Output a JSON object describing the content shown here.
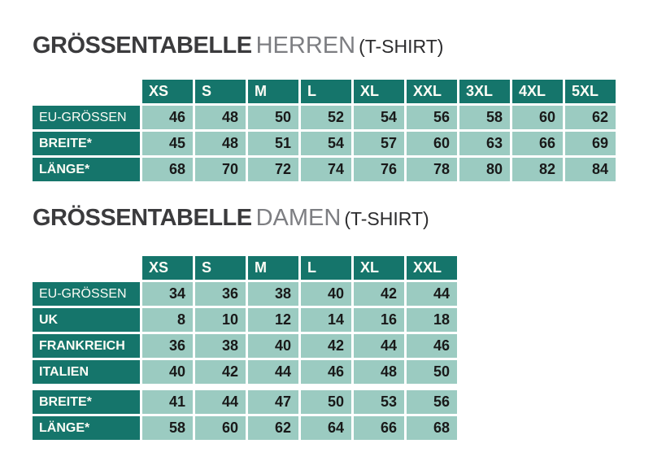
{
  "colors": {
    "header_background": "#15756b",
    "cell_background": "#9bcbc1",
    "header_text": "#fdfdf6",
    "cell_text": "#191919",
    "title_primary": "#3b3b3d",
    "title_secondary": "#7d7e82",
    "title_suffix": "#2c2c2e"
  },
  "tables": [
    {
      "name": "herren-tshirt",
      "title": {
        "main": "GRÖSSENTABELLE",
        "audience": "HERREN",
        "product": "(T-SHIRT)"
      },
      "columns": [
        "XS",
        "S",
        "M",
        "L",
        "XL",
        "XXL",
        "3XL",
        "4XL",
        "5XL"
      ],
      "rows": [
        {
          "label": "EU-GRÖSSEN",
          "emphasis": false,
          "gap_before": false,
          "values": [
            46,
            48,
            50,
            52,
            54,
            56,
            58,
            60,
            62
          ]
        },
        {
          "label": "BREITE*",
          "emphasis": true,
          "gap_before": false,
          "values": [
            45,
            48,
            51,
            54,
            57,
            60,
            63,
            66,
            69
          ]
        },
        {
          "label": "LÄNGE*",
          "emphasis": true,
          "gap_before": false,
          "values": [
            68,
            70,
            72,
            74,
            76,
            78,
            80,
            82,
            84
          ]
        }
      ]
    },
    {
      "name": "damen-tshirt",
      "title": {
        "main": "GRÖSSENTABELLE",
        "audience": "DAMEN",
        "product": "(T-SHIRT)"
      },
      "columns": [
        "XS",
        "S",
        "M",
        "L",
        "XL",
        "XXL"
      ],
      "rows": [
        {
          "label": "EU-GRÖSSEN",
          "emphasis": false,
          "gap_before": false,
          "values": [
            34,
            36,
            38,
            40,
            42,
            44
          ]
        },
        {
          "label": "UK",
          "emphasis": true,
          "gap_before": false,
          "values": [
            8,
            10,
            12,
            14,
            16,
            18
          ]
        },
        {
          "label": "FRANKREICH",
          "emphasis": true,
          "gap_before": false,
          "values": [
            36,
            38,
            40,
            42,
            44,
            46
          ]
        },
        {
          "label": "ITALIEN",
          "emphasis": true,
          "gap_before": false,
          "values": [
            40,
            42,
            44,
            46,
            48,
            50
          ]
        },
        {
          "label": "BREITE*",
          "emphasis": true,
          "gap_before": true,
          "values": [
            41,
            44,
            47,
            50,
            53,
            56
          ]
        },
        {
          "label": "LÄNGE*",
          "emphasis": true,
          "gap_before": false,
          "values": [
            58,
            60,
            62,
            64,
            66,
            68
          ]
        }
      ]
    }
  ]
}
